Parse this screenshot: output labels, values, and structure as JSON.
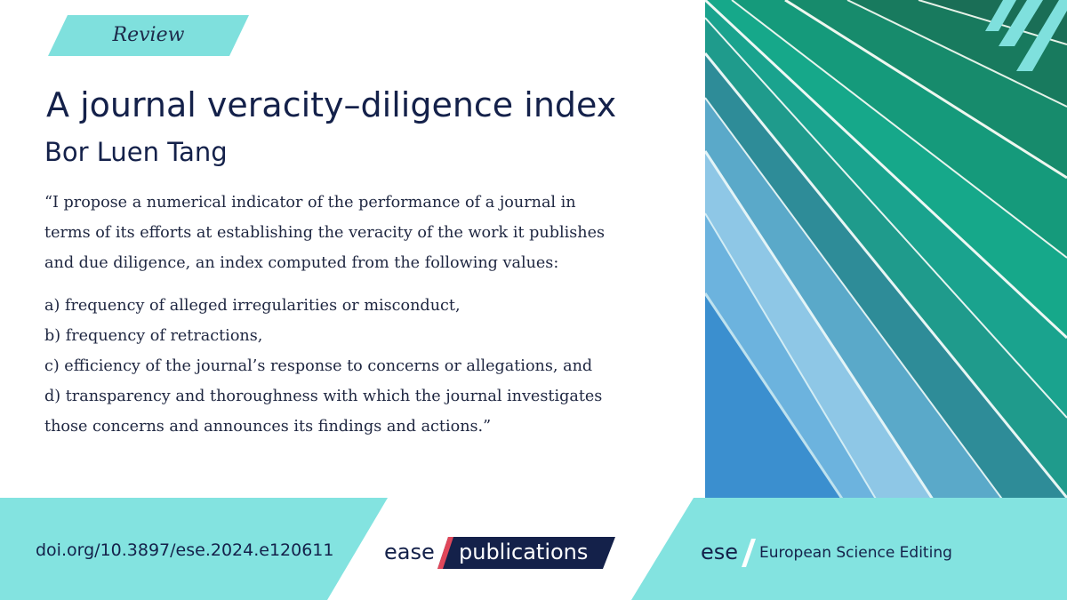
{
  "tag": {
    "label": "Review"
  },
  "article": {
    "title": "A journal veracity–diligence index",
    "author": "Bor Luen Tang"
  },
  "quote": {
    "intro_lines": [
      "“I propose a numerical indicator of the performance of a journal in",
      "terms of its efforts at establishing the veracity of the work it publishes",
      "and due diligence, an index computed from the following values:"
    ],
    "items": [
      "a) frequency of alleged irregularities or misconduct,",
      "b) frequency of retractions,",
      "c) efficiency of the journal’s response to concerns or allegations, and",
      "d) transparency and thoroughness with which the journal investigates"
    ],
    "closing": "those concerns and announces its findings and actions.”"
  },
  "footer": {
    "doi": "doi.org/10.3897/ese.2024.e120611",
    "ease_logo": {
      "word": "ease",
      "publications": "publications"
    },
    "ese_logo": {
      "abbr": "ese",
      "name": "European Science Editing"
    }
  },
  "colors": {
    "navy": "#14214a",
    "accent_red": "#e0475a",
    "tag_teal": "#7fe0dd",
    "band_teal": "#83e3e0",
    "publications_box": "#14214a"
  }
}
